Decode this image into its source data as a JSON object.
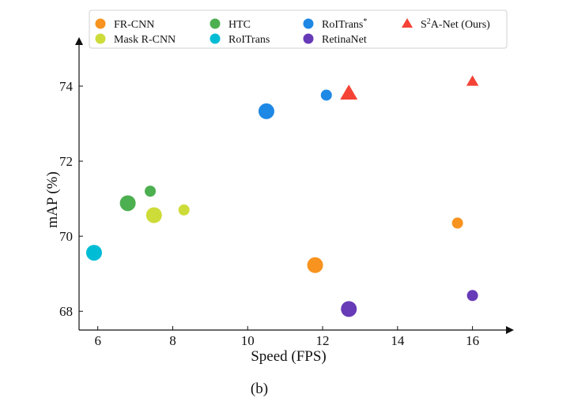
{
  "chart_data": {
    "type": "scatter",
    "title": "",
    "xlabel": "Speed (FPS)",
    "ylabel": "mAP (%)",
    "caption": "(b)",
    "xlim": [
      5.5,
      17
    ],
    "ylim": [
      67.5,
      75.2
    ],
    "xticks": [
      6,
      8,
      10,
      12,
      14,
      16
    ],
    "yticks": [
      68,
      70,
      72,
      74
    ],
    "legend_position": "top",
    "series": [
      {
        "name": "FR-CNN",
        "sup": "",
        "color": "#F7931E",
        "marker": "circle",
        "points": [
          {
            "x": 11.8,
            "y": 69.23,
            "size": "large"
          },
          {
            "x": 15.6,
            "y": 70.35,
            "size": "small"
          }
        ]
      },
      {
        "name": "Mask R-CNN",
        "sup": "",
        "color": "#CDDC39",
        "marker": "circle",
        "points": [
          {
            "x": 7.5,
            "y": 70.56,
            "size": "large"
          },
          {
            "x": 8.3,
            "y": 70.7,
            "size": "small"
          }
        ]
      },
      {
        "name": "HTC",
        "sup": "",
        "color": "#4CAF50",
        "marker": "circle",
        "points": [
          {
            "x": 6.8,
            "y": 70.88,
            "size": "large"
          },
          {
            "x": 7.4,
            "y": 71.2,
            "size": "small"
          }
        ]
      },
      {
        "name": "RoITrans",
        "sup": "",
        "color": "#00BCD4",
        "marker": "circle",
        "points": [
          {
            "x": 5.9,
            "y": 69.56,
            "size": "large"
          }
        ]
      },
      {
        "name": "RoITrans",
        "sup": "*",
        "color": "#1E88E5",
        "marker": "circle",
        "points": [
          {
            "x": 10.5,
            "y": 73.33,
            "size": "large"
          },
          {
            "x": 12.1,
            "y": 73.76,
            "size": "small"
          }
        ]
      },
      {
        "name": "RetinaNet",
        "sup": "",
        "color": "#673AB7",
        "marker": "circle",
        "points": [
          {
            "x": 12.7,
            "y": 68.06,
            "size": "large"
          },
          {
            "x": 16.0,
            "y": 68.42,
            "size": "small"
          }
        ]
      },
      {
        "name": "S",
        "sup": "2",
        "name_suffix": "A-Net (Ours)",
        "color": "#F44336",
        "marker": "triangle",
        "points": [
          {
            "x": 12.7,
            "y": 73.8,
            "size": "large"
          },
          {
            "x": 16.0,
            "y": 74.12,
            "size": "small"
          }
        ]
      }
    ]
  }
}
